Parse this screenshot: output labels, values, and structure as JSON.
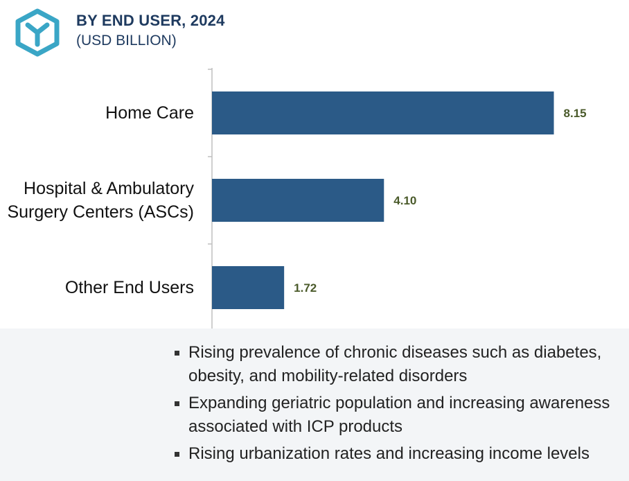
{
  "header": {
    "logo_icon": "y-hexagon-logo-icon",
    "title": "BY END USER, 2024",
    "subtitle": "(USD BILLION)"
  },
  "colors": {
    "bar": "#2b5a87",
    "value_label": "#4a5a2a",
    "axis": "#bfbfbf",
    "logo": "#3aa6c6",
    "title": "#1e3a5f",
    "panel": "#f3f5f7"
  },
  "chart_data": {
    "type": "bar",
    "orientation": "horizontal",
    "categories": [
      [
        "Home Care"
      ],
      [
        "Hospital & Ambulatory",
        "Surgery Centers (ASCs)"
      ],
      [
        "Other End Users"
      ]
    ],
    "values": [
      8.15,
      4.1,
      1.72
    ],
    "value_labels": [
      "8.15",
      "4.10",
      "1.72"
    ],
    "title": "BY END USER, 2024",
    "xlabel": "",
    "ylabel": "",
    "xlim": [
      0,
      9.0
    ],
    "grid": false,
    "legend": "none"
  },
  "bullets": [
    "Rising prevalence of chronic diseases such as diabetes, obesity, and mobility-related disorders",
    "Expanding geriatric population and increasing awareness associated with ICP products",
    "Rising urbanization rates and increasing income levels"
  ]
}
